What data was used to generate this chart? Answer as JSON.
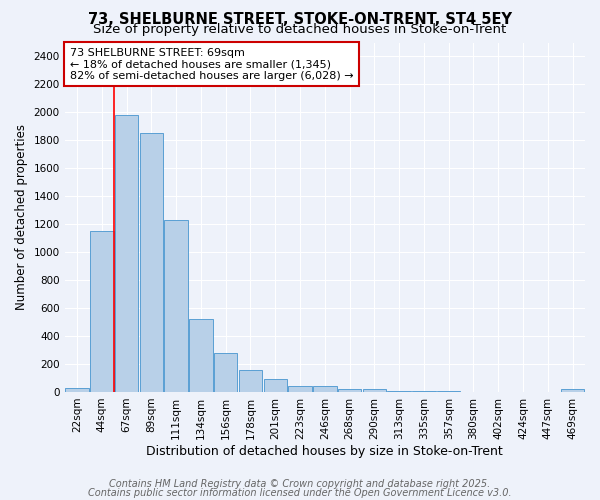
{
  "title": "73, SHELBURNE STREET, STOKE-ON-TRENT, ST4 5EY",
  "subtitle": "Size of property relative to detached houses in Stoke-on-Trent",
  "xlabel": "Distribution of detached houses by size in Stoke-on-Trent",
  "ylabel": "Number of detached properties",
  "categories": [
    "22sqm",
    "44sqm",
    "67sqm",
    "89sqm",
    "111sqm",
    "134sqm",
    "156sqm",
    "178sqm",
    "201sqm",
    "223sqm",
    "246sqm",
    "268sqm",
    "290sqm",
    "313sqm",
    "335sqm",
    "357sqm",
    "380sqm",
    "402sqm",
    "424sqm",
    "447sqm",
    "469sqm"
  ],
  "values": [
    30,
    1150,
    1980,
    1850,
    1230,
    520,
    280,
    155,
    90,
    45,
    45,
    20,
    20,
    10,
    5,
    5,
    3,
    3,
    3,
    3,
    20
  ],
  "bar_color": "#b8d0e8",
  "bar_edge_color": "#5a9fd4",
  "bar_edge_width": 0.7,
  "red_line_x": 1.5,
  "annotation_title": "73 SHELBURNE STREET: 69sqm",
  "annotation_line1": "← 18% of detached houses are smaller (1,345)",
  "annotation_line2": "82% of semi-detached houses are larger (6,028) →",
  "annotation_box_facecolor": "#ffffff",
  "annotation_box_edgecolor": "#cc0000",
  "ylim": [
    0,
    2500
  ],
  "yticks": [
    0,
    200,
    400,
    600,
    800,
    1000,
    1200,
    1400,
    1600,
    1800,
    2000,
    2200,
    2400
  ],
  "footer1": "Contains HM Land Registry data © Crown copyright and database right 2025.",
  "footer2": "Contains public sector information licensed under the Open Government Licence v3.0.",
  "bg_color": "#eef2fa",
  "grid_color": "#ffffff",
  "title_fontsize": 10.5,
  "subtitle_fontsize": 9.5,
  "ylabel_fontsize": 8.5,
  "xlabel_fontsize": 9,
  "tick_fontsize": 7.5,
  "annot_fontsize": 8,
  "footer_fontsize": 7
}
